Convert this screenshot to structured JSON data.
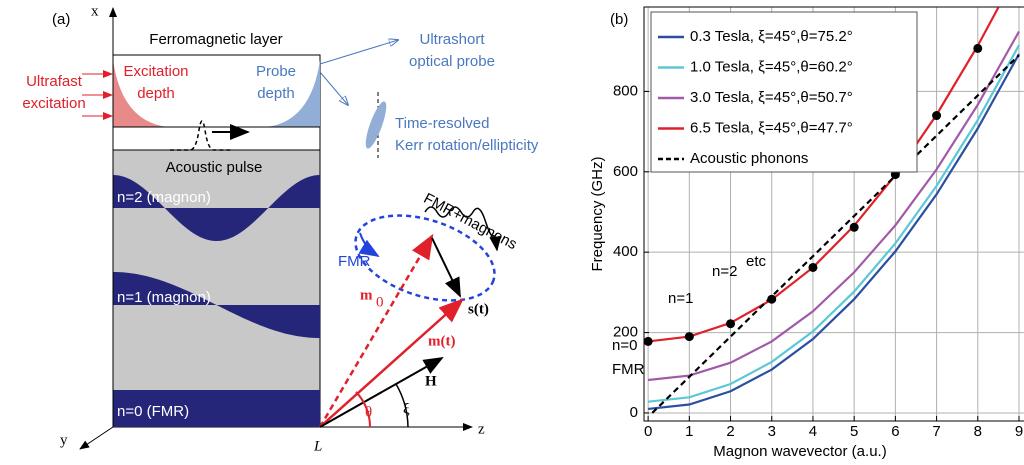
{
  "diagram": {
    "panel_label": "(a)",
    "axis_x": "x",
    "axis_y": "y",
    "axis_z": "z",
    "origin": "L",
    "layer_title": "Ferromagnetic layer",
    "excitation": [
      "Ultrafast",
      "excitation"
    ],
    "excitation_depth": [
      "Excitation",
      "depth"
    ],
    "probe_depth": [
      "Probe",
      "depth"
    ],
    "probe": [
      "Ultrashort",
      "optical probe"
    ],
    "kerr": [
      "Time-resolved",
      "Kerr rotation/ellipticity"
    ],
    "pulse": "Acoustic pulse",
    "bands": [
      "n=2 (magnon)",
      "n=1 (magnon)",
      "n=0 (FMR)"
    ],
    "fmr": "FMR",
    "fmr_magnons": "FMR+magnons",
    "m0": "m",
    "m0_sub": "0",
    "mt": "m(t)",
    "st": "s(t)",
    "h": "H",
    "theta": "θ",
    "xi": "ξ"
  },
  "chart_data": {
    "type": "line",
    "panel_label": "(b)",
    "xlabel": "Magnon wavevector (a.u.)",
    "ylabel": "Frequency (GHz)",
    "xlim": [
      -0.1,
      9
    ],
    "ylim": [
      -20,
      1010
    ],
    "xticks": [
      0,
      1,
      2,
      3,
      4,
      5,
      6,
      7,
      8,
      9
    ],
    "yticks": [
      0,
      200,
      400,
      600,
      800
    ],
    "grid": true,
    "legend": "upper left",
    "series": [
      {
        "name": "0.3 Tesla,  ξ=45°,θ=75.2°",
        "color": "#2b4fa0",
        "x": [
          0,
          1,
          2,
          3,
          4,
          5,
          6,
          7,
          8,
          9
        ],
        "values": [
          10,
          21,
          54,
          108,
          184,
          283,
          402,
          544,
          708,
          893
        ]
      },
      {
        "name": "1.0 Tesla,  ξ=45°,θ=60.2°",
        "color": "#5bc8d6",
        "x": [
          0,
          1,
          2,
          3,
          4,
          5,
          6,
          7,
          8,
          9
        ],
        "values": [
          28,
          39,
          72,
          127,
          203,
          302,
          422,
          565,
          729,
          915
        ]
      },
      {
        "name": "3.0 Tesla,  ξ=45°,θ=50.7°",
        "color": "#a15aa8",
        "x": [
          0,
          1,
          2,
          3,
          4,
          5,
          6,
          7,
          8,
          9
        ],
        "values": [
          82,
          93,
          125,
          178,
          253,
          350,
          467,
          606,
          767,
          949
        ]
      },
      {
        "name": "6.5 Tesla,  ξ=45°,θ=47.7°",
        "color": "#e0202a",
        "x": [
          0,
          1,
          2,
          3,
          4,
          5,
          6,
          7,
          8,
          8.5
        ],
        "values": [
          178,
          190,
          224,
          282,
          362,
          466,
          592,
          742,
          914,
          1009
        ]
      },
      {
        "name": "Acoustic phonons",
        "color": "#000000",
        "dashed": true,
        "x": [
          0.1,
          9
        ],
        "values": [
          0,
          890
        ]
      }
    ],
    "points": {
      "color": "#000000",
      "x": [
        0,
        1,
        2,
        3,
        4,
        5,
        6,
        7,
        8
      ],
      "values": [
        178,
        190,
        222,
        283,
        362,
        462,
        593,
        740,
        907
      ]
    },
    "annotations": [
      "n=0",
      "n=1",
      "n=2",
      "etc",
      "FMR"
    ]
  }
}
